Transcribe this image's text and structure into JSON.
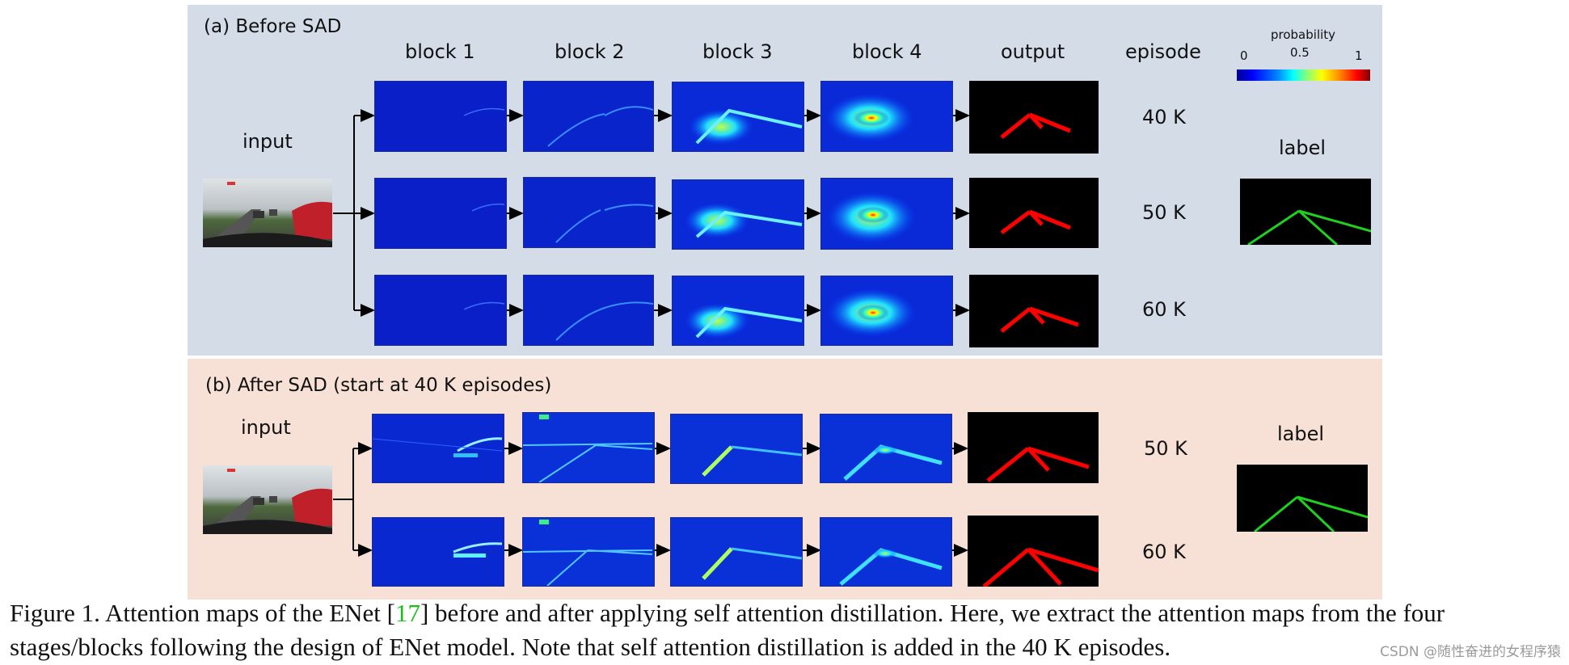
{
  "panel_a": {
    "title": "(a) Before SAD",
    "columns": [
      "block 1",
      "block 2",
      "block 3",
      "block 4",
      "output",
      "episode"
    ],
    "input_label": "input",
    "label_label": "label",
    "episodes": [
      "40 K",
      "50 K",
      "60 K"
    ]
  },
  "panel_b": {
    "title": "(b) After SAD (start at 40 K episodes)",
    "input_label": "input",
    "label_label": "label",
    "episodes": [
      "50 K",
      "60 K"
    ]
  },
  "colorbar": {
    "title": "probability",
    "ticks": [
      "0",
      "0.5",
      "1"
    ]
  },
  "caption": {
    "pre": "Figure 1. Attention maps of the ENet [",
    "ref": "17",
    "post": "] before and after applying self attention distillation. Here, we extract the attention maps from the four stages/blocks following the design of ENet model. Note that self attention distillation is added in the 40 K episodes."
  },
  "watermark": "CSDN @随性奋进的女程序猿",
  "colors": {
    "panel_a_bg": "#d4dce8",
    "panel_b_bg": "#f7e1d6",
    "lane_output": "#ff0000",
    "lane_label": "#20d020",
    "citation": "#18c018"
  }
}
